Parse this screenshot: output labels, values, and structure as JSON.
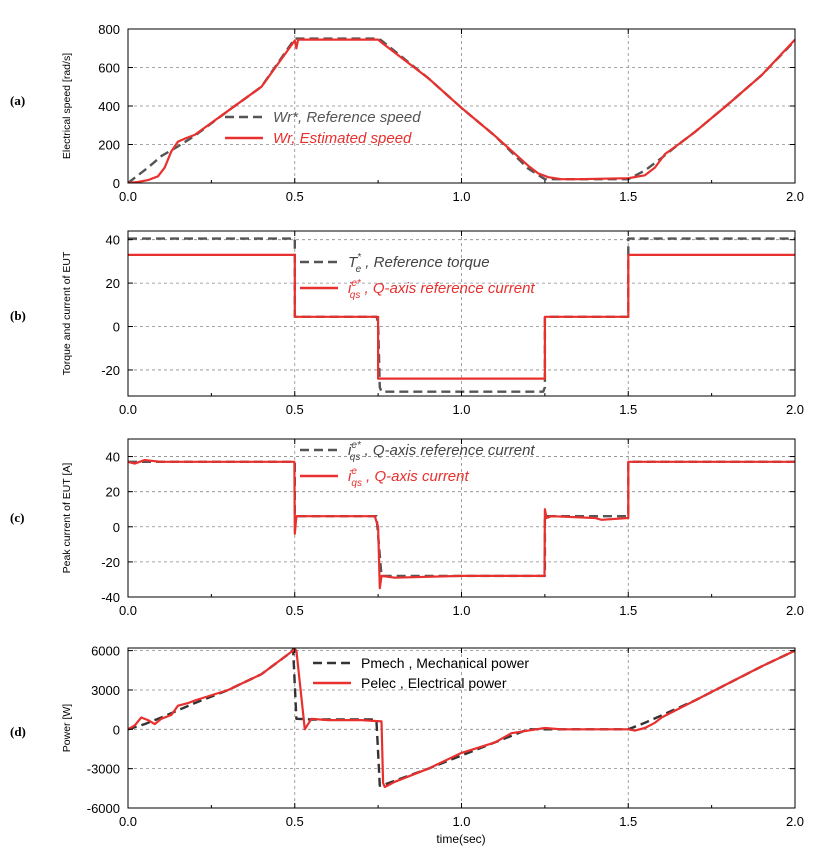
{
  "figure": {
    "xlabel": "time(sec)",
    "legend_colors": {
      "reference": "#555555",
      "measured": "#e8302e"
    }
  },
  "chart_data": [
    {
      "panel_label": "(a)",
      "type": "line",
      "ylabel": "Electrical speed [rad/s]",
      "xlim": [
        0,
        2
      ],
      "ylim": [
        0,
        800
      ],
      "xticks": [
        0.0,
        0.5,
        1.0,
        1.5,
        2.0
      ],
      "yticks": [
        0,
        200,
        400,
        600,
        800
      ],
      "grid": true,
      "legend_position": "lower-left",
      "series": [
        {
          "name": "Wr*, Reference speed",
          "style": "dashed",
          "color": "#555555",
          "x": [
            0,
            0.03,
            0.06,
            0.1,
            0.15,
            0.2,
            0.3,
            0.4,
            0.5,
            0.51,
            0.75,
            0.76,
            0.9,
            1.0,
            1.1,
            1.2,
            1.25,
            1.26,
            1.5,
            1.55,
            1.6,
            1.65,
            1.7,
            1.8,
            1.9,
            2.0
          ],
          "y": [
            0,
            40,
            80,
            140,
            190,
            245,
            375,
            500,
            750,
            750,
            750,
            740,
            545,
            390,
            245,
            75,
            20,
            20,
            20,
            65,
            130,
            200,
            265,
            410,
            560,
            740
          ]
        },
        {
          "name": "Wr, Estimated speed",
          "style": "solid",
          "color": "#e8302e",
          "x": [
            0,
            0.03,
            0.06,
            0.09,
            0.11,
            0.13,
            0.15,
            0.17,
            0.2,
            0.3,
            0.4,
            0.5,
            0.505,
            0.51,
            0.75,
            0.76,
            0.9,
            1.0,
            1.1,
            1.2,
            1.23,
            1.26,
            1.3,
            1.35,
            1.5,
            1.55,
            1.58,
            1.61,
            1.65,
            1.7,
            1.8,
            1.9,
            2.0
          ],
          "y": [
            0,
            5,
            15,
            35,
            80,
            165,
            215,
            230,
            250,
            375,
            500,
            740,
            700,
            745,
            745,
            730,
            545,
            390,
            245,
            90,
            50,
            30,
            20,
            20,
            25,
            40,
            80,
            150,
            200,
            265,
            410,
            560,
            745
          ]
        }
      ]
    },
    {
      "panel_label": "(b)",
      "type": "line",
      "ylabel": "Torque and current of  EUT",
      "xlim": [
        0,
        2
      ],
      "ylim": [
        -32,
        44
      ],
      "xticks": [
        0.0,
        0.5,
        1.0,
        1.5,
        2.0
      ],
      "yticks": [
        -20,
        0,
        20,
        40
      ],
      "grid": true,
      "legend_position": "top-center",
      "series": [
        {
          "name": "Te*, Reference torque",
          "style": "dashed",
          "color": "#555555",
          "x": [
            0,
            0.5,
            0.5,
            0.745,
            0.75,
            0.755,
            0.76,
            1.245,
            1.25,
            1.25,
            1.5,
            1.5,
            2.0
          ],
          "y": [
            40.5,
            40.5,
            4.5,
            4.5,
            2,
            -28,
            -30,
            -30,
            -28,
            4.5,
            4.5,
            40.5,
            40.5
          ]
        },
        {
          "name": "iqs*, Q-axis reference current",
          "style": "solid",
          "color": "#e8302e",
          "x": [
            0,
            0.5,
            0.5,
            0.75,
            0.75,
            1.25,
            1.25,
            1.5,
            1.5,
            2.0
          ],
          "y": [
            33,
            33,
            4.5,
            4.5,
            -24,
            -24,
            4.5,
            4.5,
            33,
            33
          ]
        }
      ],
      "legend": [
        {
          "symbol": "T",
          "sup": "*",
          "sub": "e",
          "text": ", Reference torque"
        },
        {
          "symbol": "i",
          "sup": "e*",
          "sub": "qs",
          "text": ", Q-axis reference current"
        }
      ]
    },
    {
      "panel_label": "(c)",
      "type": "line",
      "ylabel": "Peak current of EUT [A]",
      "xlim": [
        0,
        2
      ],
      "ylim": [
        -40,
        50
      ],
      "xticks": [
        0.0,
        0.5,
        1.0,
        1.5,
        2.0
      ],
      "yticks": [
        -40,
        -20,
        0,
        20,
        40
      ],
      "grid": true,
      "legend_position": "top-center",
      "series": [
        {
          "name": "iqs*, Q-axis reference current",
          "style": "dashed",
          "color": "#555555",
          "x": [
            0,
            0.5,
            0.5,
            0.745,
            0.76,
            1.25,
            1.25,
            1.5,
            1.5,
            2.0
          ],
          "y": [
            37,
            37,
            6,
            6,
            -28,
            -28,
            6,
            6,
            37,
            37
          ]
        },
        {
          "name": "iqs, Q-axis current",
          "style": "solid",
          "color": "#e8302e",
          "x": [
            0,
            0.02,
            0.05,
            0.1,
            0.3,
            0.499,
            0.5,
            0.505,
            0.52,
            0.74,
            0.75,
            0.755,
            0.76,
            0.8,
            1.0,
            1.249,
            1.25,
            1.255,
            1.27,
            1.4,
            1.42,
            1.5,
            1.5,
            1.55,
            2.0
          ],
          "y": [
            37,
            36,
            38,
            37,
            37,
            37,
            -4,
            6,
            6,
            6,
            0,
            -35,
            -28,
            -29,
            -28,
            -28,
            10,
            5,
            6,
            5,
            4,
            5,
            37,
            37,
            37
          ]
        }
      ],
      "legend": [
        {
          "symbol": "i",
          "sup": "e*",
          "sub": "qs",
          "text": ", Q-axis reference current"
        },
        {
          "symbol": "i",
          "sup": "e",
          "sub": "qs",
          "text": ", Q-axis current"
        }
      ]
    },
    {
      "panel_label": "(d)",
      "type": "line",
      "ylabel": "Power [W]",
      "xlim": [
        0,
        2
      ],
      "ylim": [
        -6000,
        6200
      ],
      "xticks": [
        0.0,
        0.5,
        1.0,
        1.5,
        2.0
      ],
      "yticks": [
        -6000,
        -3000,
        0,
        3000,
        6000
      ],
      "grid": true,
      "legend_position": "top-center",
      "series": [
        {
          "name": "Pmech , Mechanical power",
          "style": "dashed",
          "color": "#333333",
          "x": [
            0,
            0.05,
            0.1,
            0.2,
            0.3,
            0.4,
            0.49,
            0.495,
            0.505,
            0.55,
            0.74,
            0.745,
            0.755,
            0.77,
            0.9,
            1.0,
            1.1,
            1.2,
            1.25,
            1.5,
            1.55,
            1.7,
            1.8,
            1.9,
            2.0
          ],
          "y": [
            0,
            400,
            900,
            2000,
            3000,
            4200,
            5900,
            6100,
            800,
            750,
            750,
            600,
            -4300,
            -4200,
            -3000,
            -2000,
            -1000,
            0,
            0,
            0,
            500,
            2200,
            3500,
            4800,
            6000
          ]
        },
        {
          "name": "Pelec , Electrical power",
          "style": "solid",
          "color": "#e8302e",
          "x": [
            0,
            0.02,
            0.04,
            0.06,
            0.08,
            0.1,
            0.13,
            0.15,
            0.18,
            0.2,
            0.3,
            0.4,
            0.5,
            0.505,
            0.53,
            0.55,
            0.6,
            0.7,
            0.76,
            0.765,
            0.77,
            0.8,
            0.9,
            1.0,
            1.1,
            1.15,
            1.2,
            1.25,
            1.3,
            1.5,
            1.52,
            1.55,
            1.58,
            1.6,
            1.7,
            1.8,
            1.9,
            2.0
          ],
          "y": [
            0,
            300,
            900,
            700,
            400,
            800,
            1100,
            1800,
            2000,
            2200,
            3000,
            4200,
            6100,
            6000,
            0,
            800,
            700,
            700,
            600,
            -4100,
            -4400,
            -4000,
            -3000,
            -1800,
            -1000,
            -300,
            -100,
            100,
            0,
            0,
            -100,
            100,
            500,
            900,
            2200,
            3500,
            4800,
            6000
          ]
        }
      ]
    }
  ]
}
